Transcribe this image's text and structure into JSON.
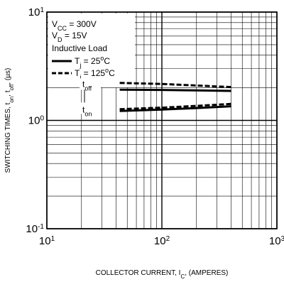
{
  "chart_data": {
    "type": "line",
    "x_scale": "log",
    "y_scale": "log",
    "xlim": [
      10,
      1000
    ],
    "ylim": [
      0.1,
      10
    ],
    "grid": true,
    "legend_position": "top-left",
    "xlabel": {
      "prefix": "COLLECTOR CURRENT, I",
      "sub": "C",
      "suffix": ", (AMPERES)"
    },
    "ylabel": {
      "a": "SWITCHING TIMES, t",
      "a_sub": "on",
      "b": ", t",
      "b_sub": "off",
      "c": ", (µs)"
    },
    "x_ticks": [
      {
        "base": "10",
        "exp": "1",
        "value": 10
      },
      {
        "base": "10",
        "exp": "2",
        "value": 100
      },
      {
        "base": "10",
        "exp": "3",
        "value": 1000
      }
    ],
    "y_ticks": [
      {
        "base": "10",
        "exp": "-1",
        "value": 0.1
      },
      {
        "base": "10",
        "exp": "0",
        "value": 1
      },
      {
        "base": "10",
        "exp": "1",
        "value": 10
      }
    ],
    "conditions": [
      {
        "prefix": "V",
        "sub": "CC",
        "suffix": " = 300V"
      },
      {
        "prefix": "V",
        "sub": "D",
        "suffix": " = 15V"
      },
      {
        "prefix": "Inductive Load",
        "sub": "",
        "suffix": ""
      }
    ],
    "legend": [
      {
        "prefix": "T",
        "sub": "j",
        "suffix": " = 25",
        "sup": "o",
        "tail": "C",
        "style": "solid"
      },
      {
        "prefix": "T",
        "sub": "j",
        "suffix": " = 125",
        "sup": "o",
        "tail": "C",
        "style": "dashed"
      }
    ],
    "annotations": [
      {
        "prefix": "t",
        "sub": "off",
        "near_series": "t_off"
      },
      {
        "prefix": "t",
        "sub": "on",
        "near_series": "t_on"
      }
    ],
    "series": [
      {
        "key": "t_off_25C",
        "curve": "t_off",
        "style": "solid",
        "x": [
          43,
          100,
          200,
          400
        ],
        "y": [
          1.92,
          1.91,
          1.89,
          1.87
        ]
      },
      {
        "key": "t_off_125C",
        "curve": "t_off",
        "style": "dashed",
        "x": [
          43,
          100,
          200,
          400
        ],
        "y": [
          2.22,
          2.17,
          2.1,
          2.03
        ]
      },
      {
        "key": "t_on_25C",
        "curve": "t_on",
        "style": "solid",
        "x": [
          43,
          100,
          200,
          400
        ],
        "y": [
          1.22,
          1.26,
          1.3,
          1.35
        ]
      },
      {
        "key": "t_on_125C",
        "curve": "t_on",
        "style": "dashed",
        "x": [
          43,
          100,
          200,
          400
        ],
        "y": [
          1.27,
          1.31,
          1.36,
          1.42
        ]
      }
    ]
  }
}
